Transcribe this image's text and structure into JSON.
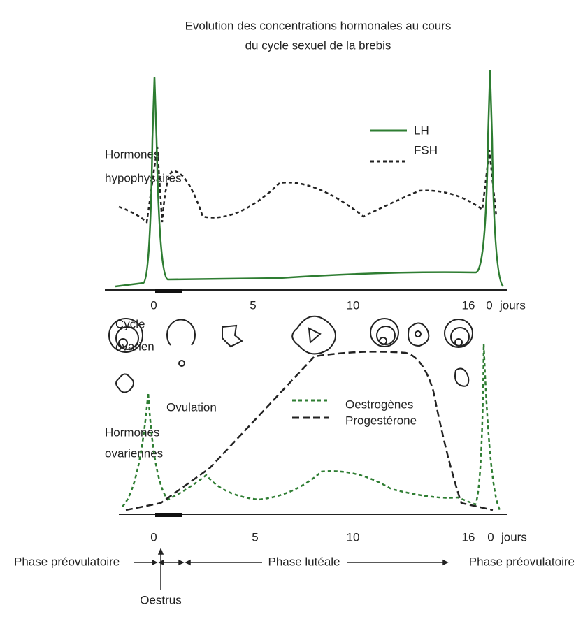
{
  "title": [
    "Evolution des concentrations hormonales au cours",
    "du cycle sexuel de la brebis"
  ],
  "top_panel": {
    "label": [
      "Hormones",
      "hypophysaires"
    ],
    "legend": [
      "LH",
      "FSH"
    ],
    "axis_labels": [
      "0",
      "5",
      "10",
      "16",
      "0",
      "jours"
    ]
  },
  "middle_panel": {
    "label": [
      "Cycle",
      "ovarien"
    ]
  },
  "bottom_panel": {
    "label": [
      "Hormones",
      "ovariennes"
    ],
    "annotation": "Ovulation",
    "legend": [
      "Oestrogènes",
      "Progestérone"
    ],
    "axis_labels": [
      "0",
      "5",
      "10",
      "16",
      "0",
      "jours"
    ]
  },
  "phases": [
    "Phase préovulatoire",
    "Phase lutéale",
    "Phase préovulatoire"
  ],
  "oestrus": "Oestrus"
}
